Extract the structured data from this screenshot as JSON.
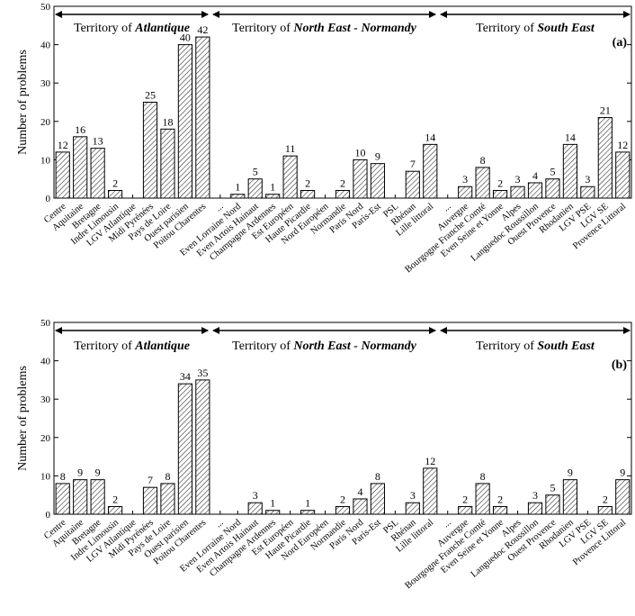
{
  "figure": {
    "categories": [
      "Centre",
      "Aquitaine",
      "Bretagne",
      "Indre Limousin",
      "LGV Atlantique",
      "Midi Pyrénées",
      "Pays de Loire",
      "Ouest parisien",
      "Poitou Charentes",
      "...",
      "Even Lorraine Nord",
      "Even Artois Hainaut",
      "Champagne Ardennes",
      "Est Européen",
      "Haute Picardie",
      "Nord Européen",
      "Normandie",
      "Paris Nord",
      "Paris-Est",
      "PSL",
      "Rhénan",
      "Lille littoral",
      "...",
      "Auvergne",
      "Bourgogne Franche Comté",
      "Even Seine et Yonne",
      "Alpes",
      "Languedoc Roussillon",
      "Ouest Provence",
      "Rhodanien",
      "LGV PSE",
      "LGV SE",
      "Provence Littoral"
    ]
  },
  "chart_data": [
    {
      "type": "bar",
      "panel_label": "(a)",
      "ylabel": "Number of problems",
      "ylim": [
        0,
        50
      ],
      "yticks": [
        0,
        10,
        20,
        30,
        40,
        50
      ],
      "territories": [
        {
          "prefix": "Territory of ",
          "name": "Atlantique"
        },
        {
          "prefix": "Territory of ",
          "name": "North East - Normandy"
        },
        {
          "prefix": "Territory of ",
          "name": "South East"
        }
      ],
      "values": [
        12,
        16,
        13,
        2,
        null,
        25,
        18,
        40,
        42,
        null,
        1,
        5,
        1,
        11,
        2,
        null,
        2,
        10,
        9,
        null,
        7,
        14,
        null,
        3,
        8,
        2,
        3,
        4,
        5,
        14,
        3,
        21,
        12
      ]
    },
    {
      "type": "bar",
      "panel_label": "(b)",
      "ylabel": "Number of problems",
      "ylim": [
        0,
        50
      ],
      "yticks": [
        0,
        10,
        20,
        30,
        40,
        50
      ],
      "territories": [
        {
          "prefix": "Territory  of ",
          "name": "Atlantique"
        },
        {
          "prefix": "Territory of ",
          "name": "North East - Normandy"
        },
        {
          "prefix": "Territory of ",
          "name": "South East"
        }
      ],
      "values": [
        8,
        9,
        9,
        2,
        null,
        7,
        8,
        34,
        35,
        null,
        null,
        3,
        1,
        null,
        1,
        null,
        2,
        4,
        8,
        null,
        3,
        12,
        null,
        2,
        8,
        2,
        null,
        3,
        5,
        9,
        null,
        2,
        9
      ]
    }
  ]
}
